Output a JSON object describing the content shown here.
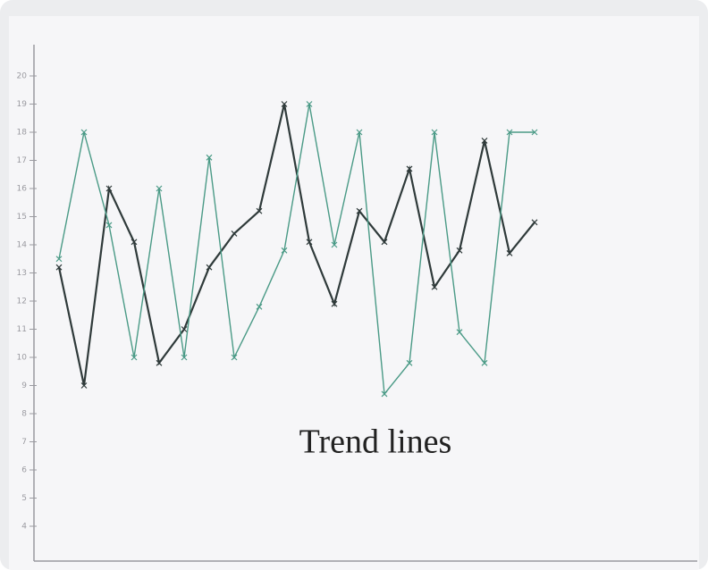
{
  "chart_data": {
    "type": "line",
    "annotation": "Trend lines",
    "categories": [
      null,
      null,
      null,
      null,
      null,
      null,
      null,
      null,
      null,
      null,
      null,
      null,
      null,
      null,
      null,
      null,
      null,
      null,
      null,
      null
    ],
    "series": [
      {
        "color": "#2f3a3a",
        "values": [
          13.2,
          9.0,
          16.0,
          14.1,
          9.8,
          11.0,
          13.2,
          14.4,
          15.2,
          19.0,
          14.1,
          11.9,
          15.2,
          14.1,
          16.7,
          12.5,
          13.8,
          17.7,
          13.7,
          14.8
        ]
      },
      {
        "color": "#4a9a86",
        "values": [
          13.5,
          18.0,
          14.7,
          10.0,
          16.0,
          10.0,
          17.1,
          10.0,
          11.8,
          13.8,
          19.0,
          14.0,
          18.0,
          8.7,
          9.8,
          18.0,
          10.9,
          9.8,
          18.0,
          18.0
        ]
      }
    ],
    "ylim": [
      3,
      21
    ],
    "yticks": [
      4,
      5,
      6,
      7,
      8,
      9,
      10,
      11,
      12,
      13,
      14,
      15,
      16,
      17,
      18,
      19,
      20
    ],
    "grid": false
  }
}
